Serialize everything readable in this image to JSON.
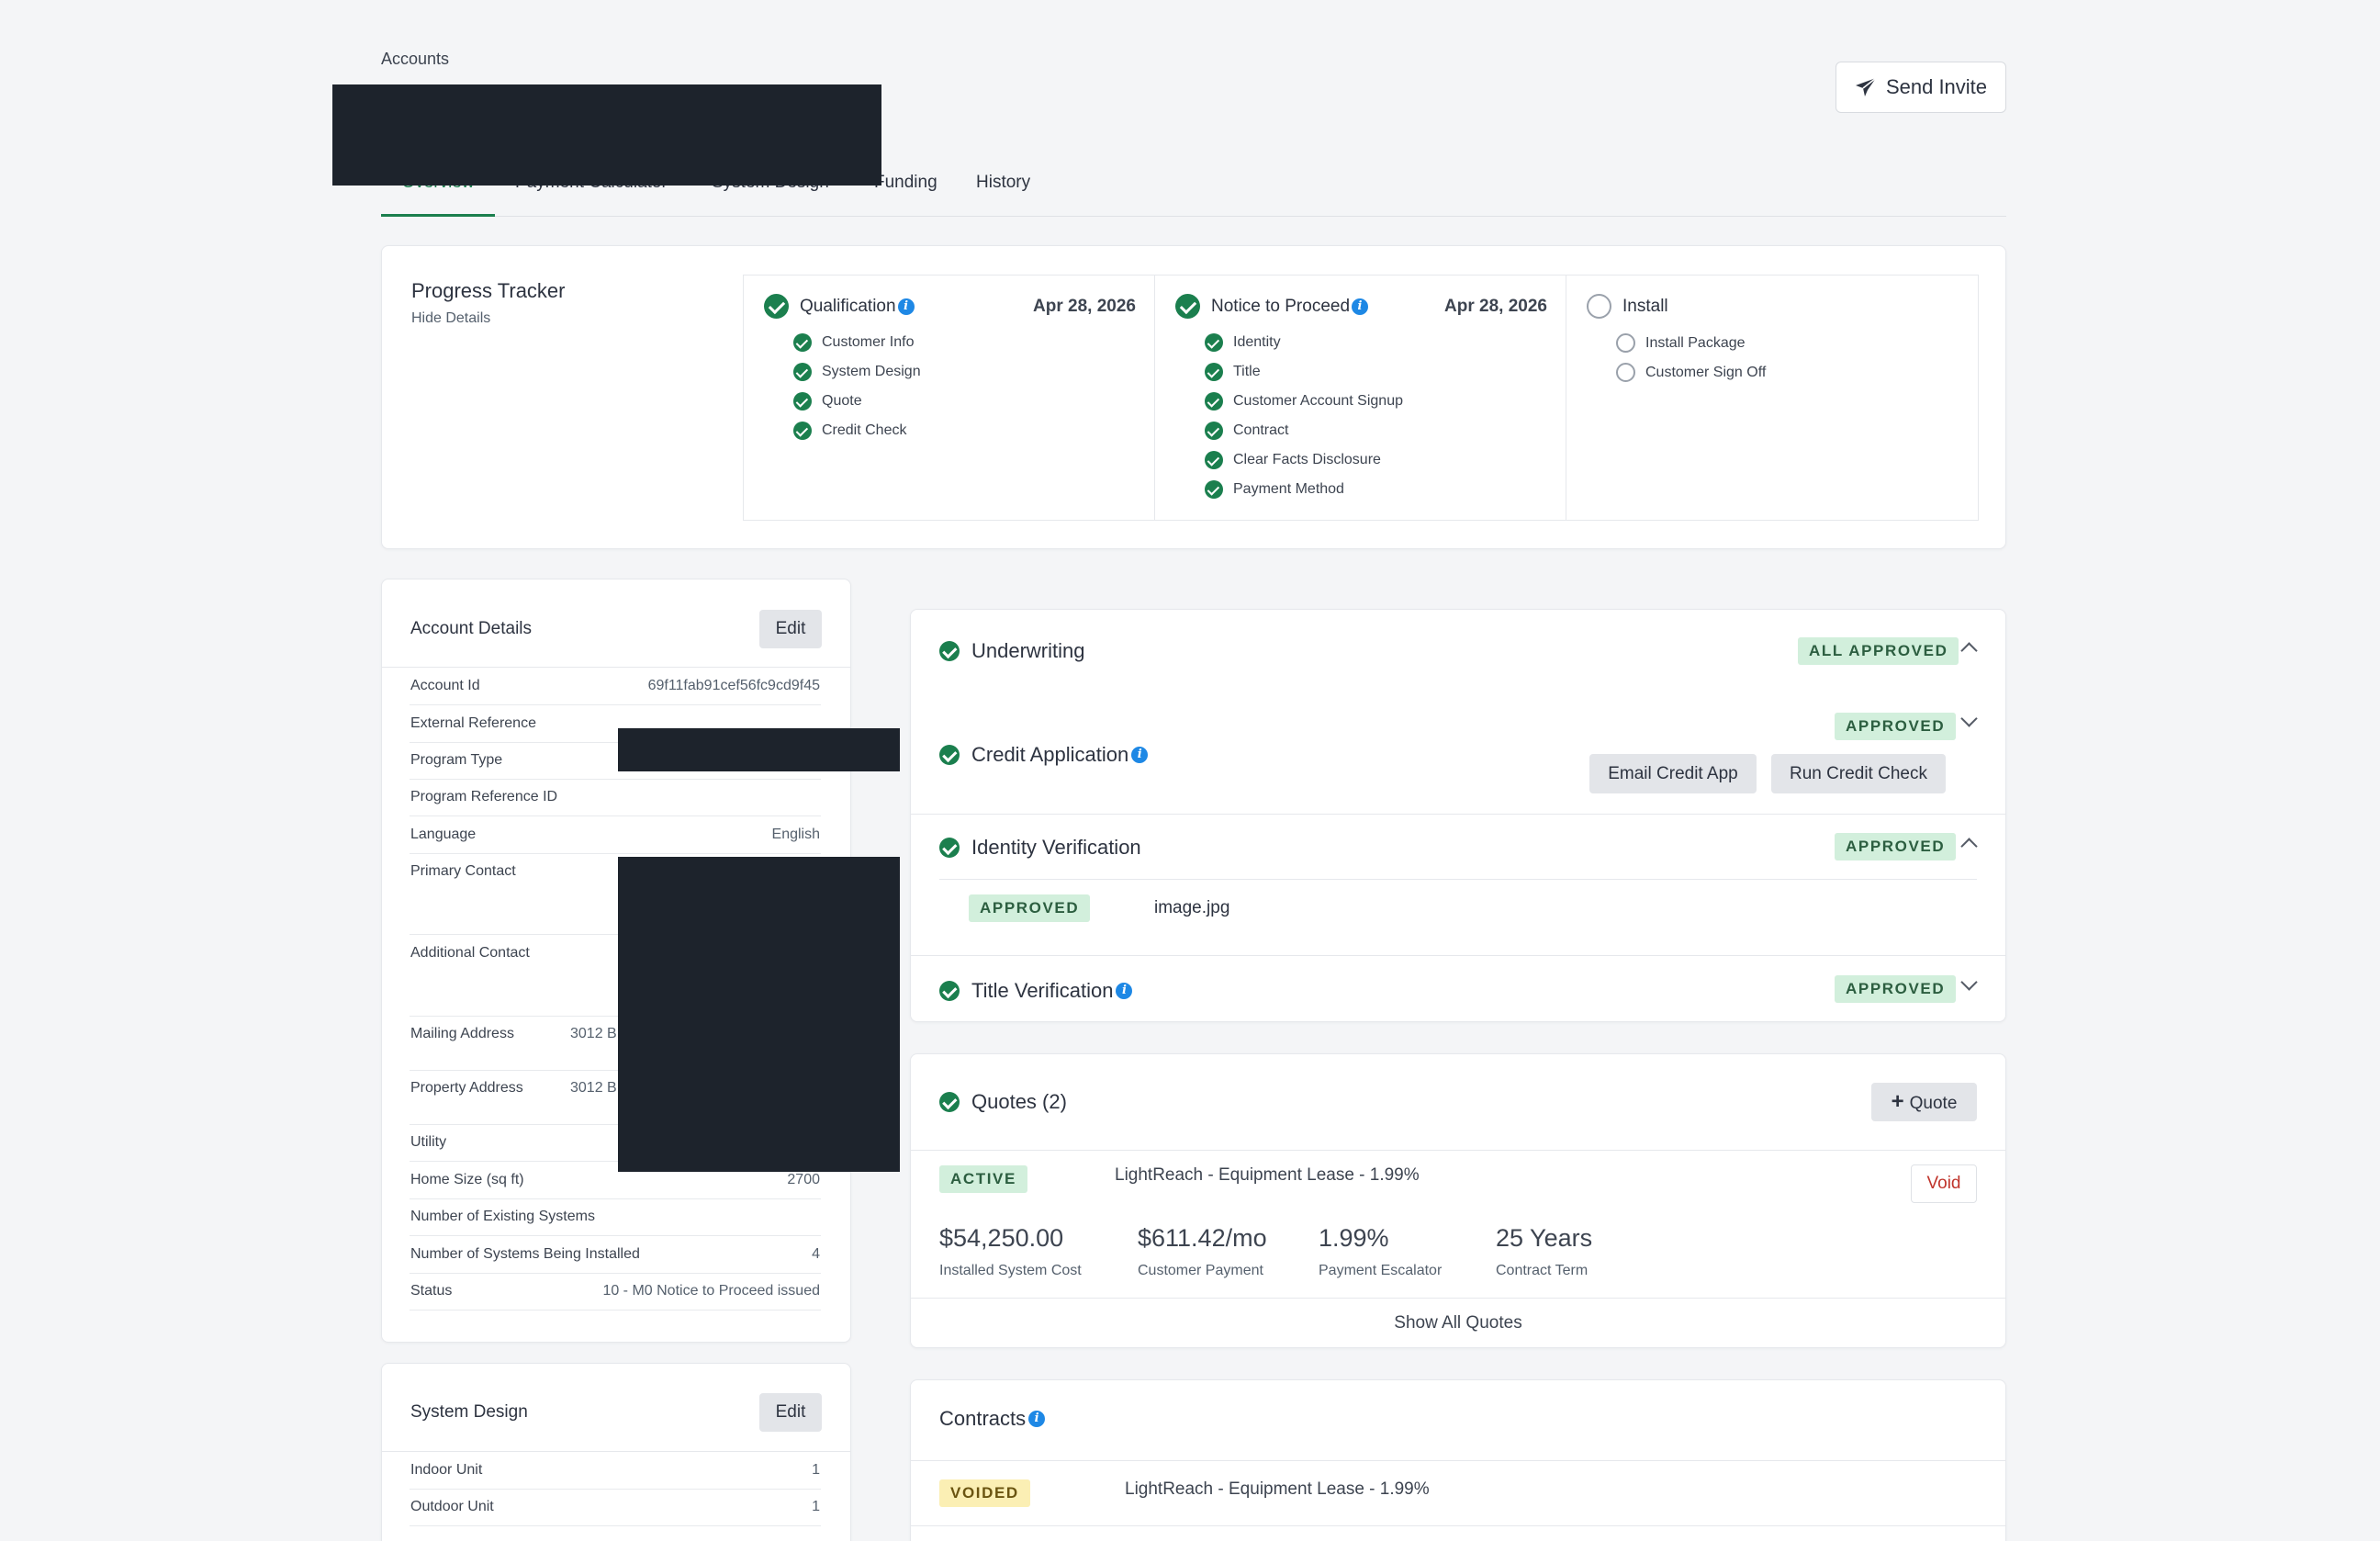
{
  "breadcrumb": "Accounts",
  "header": {
    "send_invite_label": "Send Invite"
  },
  "tabs": [
    "Overview",
    "Payment Calculator",
    "System Design",
    "Funding",
    "History"
  ],
  "progress_tracker": {
    "title": "Progress Tracker",
    "toggle_label": "Hide Details",
    "stages": [
      {
        "name": "Qualification",
        "date": "Apr 28, 2026",
        "items": [
          "Customer Info",
          "System Design",
          "Quote",
          "Credit Check"
        ]
      },
      {
        "name": "Notice to Proceed",
        "date": "Apr 28, 2026",
        "items": [
          "Identity",
          "Title",
          "Customer Account Signup",
          "Contract",
          "Clear Facts Disclosure",
          "Payment Method"
        ]
      },
      {
        "name": "Install",
        "date": "",
        "items": [
          "Install Package",
          "Customer Sign Off"
        ]
      }
    ]
  },
  "account_details": {
    "title": "Account Details",
    "edit_label": "Edit",
    "rows": [
      {
        "label": "Account Id",
        "value": "69f11fab91cef56fc9cd9f45"
      },
      {
        "label": "External Reference",
        "value": ""
      },
      {
        "label": "Program Type",
        "value": ""
      },
      {
        "label": "Program Reference ID",
        "value": ""
      },
      {
        "label": "Language",
        "value": "English"
      },
      {
        "label": "Primary Contact",
        "value": ""
      },
      {
        "label": "Additional Contact",
        "value": ""
      },
      {
        "label": "Mailing Address",
        "value": "3012 B"
      },
      {
        "label": "Property Address",
        "value": "3012 B"
      },
      {
        "label": "Utility",
        "value": ""
      },
      {
        "label": "Home Size (sq ft)",
        "value": "2700"
      },
      {
        "label": "Number of Existing Systems",
        "value": ""
      },
      {
        "label": "Number of Systems Being Installed",
        "value": "4"
      },
      {
        "label": "Status",
        "value": "10 - M0 Notice to Proceed issued"
      }
    ]
  },
  "system_design": {
    "title": "System Design",
    "edit_label": "Edit",
    "rows": [
      {
        "label": "Indoor Unit",
        "value": "1"
      },
      {
        "label": "Outdoor Unit",
        "value": "1"
      }
    ]
  },
  "underwriting": {
    "title": "Underwriting",
    "status": "ALL APPROVED",
    "credit_application": {
      "title": "Credit Application",
      "status": "APPROVED",
      "email_label": "Email Credit App",
      "run_label": "Run Credit Check"
    },
    "identity_verification": {
      "title": "Identity Verification",
      "status": "APPROVED",
      "file_status": "APPROVED",
      "file_name": "image.jpg"
    },
    "title_verification": {
      "title": "Title Verification",
      "status": "APPROVED"
    }
  },
  "quotes": {
    "title": "Quotes (2)",
    "add_label": "Quote",
    "active": {
      "status": "ACTIVE",
      "name": "LightReach - Equipment Lease - 1.99%",
      "void_label": "Void",
      "installed_cost": "$54,250.00",
      "installed_cost_label": "Installed System Cost",
      "customer_payment": "$611.42/mo",
      "customer_payment_label": "Customer Payment",
      "escalator": "1.99%",
      "escalator_label": "Payment Escalator",
      "term": "25 Years",
      "term_label": "Contract Term"
    },
    "show_all_label": "Show All Quotes"
  },
  "contracts": {
    "title": "Contracts",
    "items": [
      {
        "status": "VOIDED",
        "name": "LightReach - Equipment Lease - 1.99%"
      }
    ]
  },
  "colors": {
    "accent_green": "#1b7f4e",
    "info_blue": "#1e88e5",
    "approved_badge": "#d2efdc",
    "voided_badge": "#fbefb4",
    "redaction": "#1d232c"
  },
  "icons": {
    "send": "paper-plane-icon",
    "check": "check-circle-icon",
    "pending": "empty-circle-icon",
    "info": "info-icon",
    "expand": "chevron-icon",
    "add": "plus-icon"
  }
}
